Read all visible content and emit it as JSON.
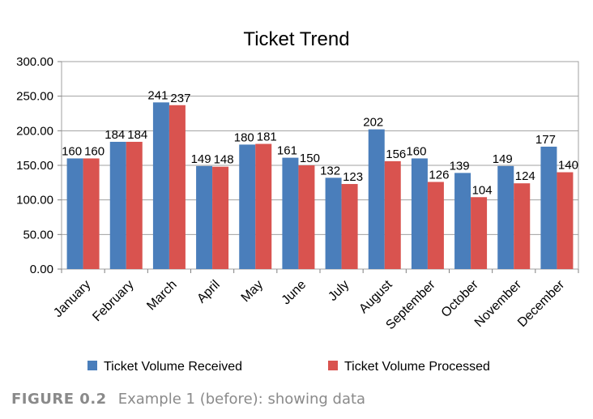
{
  "chart_data": {
    "type": "bar",
    "title": "Ticket Trend",
    "categories": [
      "January",
      "February",
      "March",
      "April",
      "May",
      "June",
      "July",
      "August",
      "September",
      "October",
      "November",
      "December"
    ],
    "series": [
      {
        "name": "Ticket Volume Received",
        "color": "#4a7ebb",
        "values": [
          160,
          184,
          241,
          149,
          180,
          161,
          132,
          202,
          160,
          139,
          149,
          177
        ]
      },
      {
        "name": "Ticket Volume Processed",
        "color": "#d9534f",
        "values": [
          160,
          184,
          237,
          148,
          181,
          150,
          123,
          156,
          126,
          104,
          124,
          140
        ]
      }
    ],
    "ylim": [
      0,
      300
    ],
    "yticks": [
      "0.00",
      "50.00",
      "100.00",
      "150.00",
      "200.00",
      "250.00",
      "300.00"
    ],
    "grid": true,
    "legend": "bottom"
  },
  "caption": {
    "figure": "FIGURE 0.2",
    "text": "Example 1 (before): showing data"
  }
}
